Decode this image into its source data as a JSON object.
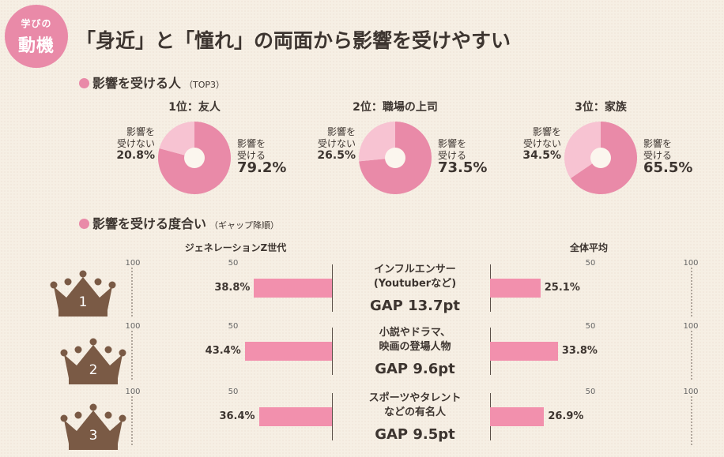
{
  "badge": {
    "line1": "学びの",
    "line2": "動機"
  },
  "headline": "「身近」と「憧れ」の両面から影響を受けやすい",
  "section1": {
    "title": "影響を受ける人",
    "sub": "（TOP3）"
  },
  "section2": {
    "title": "影響を受ける度合い",
    "sub": "（ギャップ降順）"
  },
  "colors": {
    "pink": "#e98aa8",
    "light_pink": "#f7c3d2",
    "bar": "#f290ad",
    "crown": "#7a5a45"
  },
  "pies": [
    {
      "title": "1位：友人",
      "no_label": "影響を\n受けない",
      "no_value": "20.8%",
      "yes_label": "影響を\n受ける",
      "yes_value": "79.2%"
    },
    {
      "title": "2位：職場の上司",
      "no_label": "影響を\n受けない",
      "no_value": "26.5%",
      "yes_label": "影響を\n受ける",
      "yes_value": "73.5%"
    },
    {
      "title": "3位：家族",
      "no_label": "影響を\n受けない",
      "no_value": "34.5%",
      "yes_label": "影響を\n受ける",
      "yes_value": "65.5%"
    }
  ],
  "bars_header": {
    "left": "ジェネレーションZ世代",
    "right": "全体平均"
  },
  "rows": [
    {
      "rank": "1",
      "category": "インフルエンサー\n(Youtuberなど)",
      "gap": "GAP 13.7pt",
      "left_label": "38.8%",
      "right_label": "25.1%"
    },
    {
      "rank": "2",
      "category": "小説やドラマ、\n映画の登場人物",
      "gap": "GAP 9.6pt",
      "left_label": "43.4%",
      "right_label": "33.8%"
    },
    {
      "rank": "3",
      "category": "スポーツやタレント\nなどの有名人",
      "gap": "GAP 9.5pt",
      "left_label": "36.4%",
      "right_label": "26.9%"
    }
  ],
  "ticks": {
    "t100": "100",
    "t50": "50"
  },
  "chart_data": [
    {
      "type": "pie",
      "title": "1位：友人",
      "labels": [
        "影響を受ける",
        "影響を受けない"
      ],
      "values": [
        79.2,
        20.8
      ]
    },
    {
      "type": "pie",
      "title": "2位：職場の上司",
      "labels": [
        "影響を受ける",
        "影響を受けない"
      ],
      "values": [
        73.5,
        26.5
      ]
    },
    {
      "type": "pie",
      "title": "3位：家族",
      "labels": [
        "影響を受ける",
        "影響を受けない"
      ],
      "values": [
        65.5,
        34.5
      ]
    },
    {
      "type": "bar",
      "orientation": "horizontal-butterfly",
      "categories": [
        "インフルエンサー(Youtuberなど)",
        "小説やドラマ、映画の登場人物",
        "スポーツやタレントなどの有名人"
      ],
      "series": [
        {
          "name": "ジェネレーションZ世代",
          "values": [
            38.8,
            43.4,
            36.4
          ]
        },
        {
          "name": "全体平均",
          "values": [
            25.1,
            33.8,
            26.9
          ]
        }
      ],
      "gap": [
        13.7,
        9.6,
        9.5
      ],
      "xlim": [
        0,
        100
      ]
    }
  ]
}
